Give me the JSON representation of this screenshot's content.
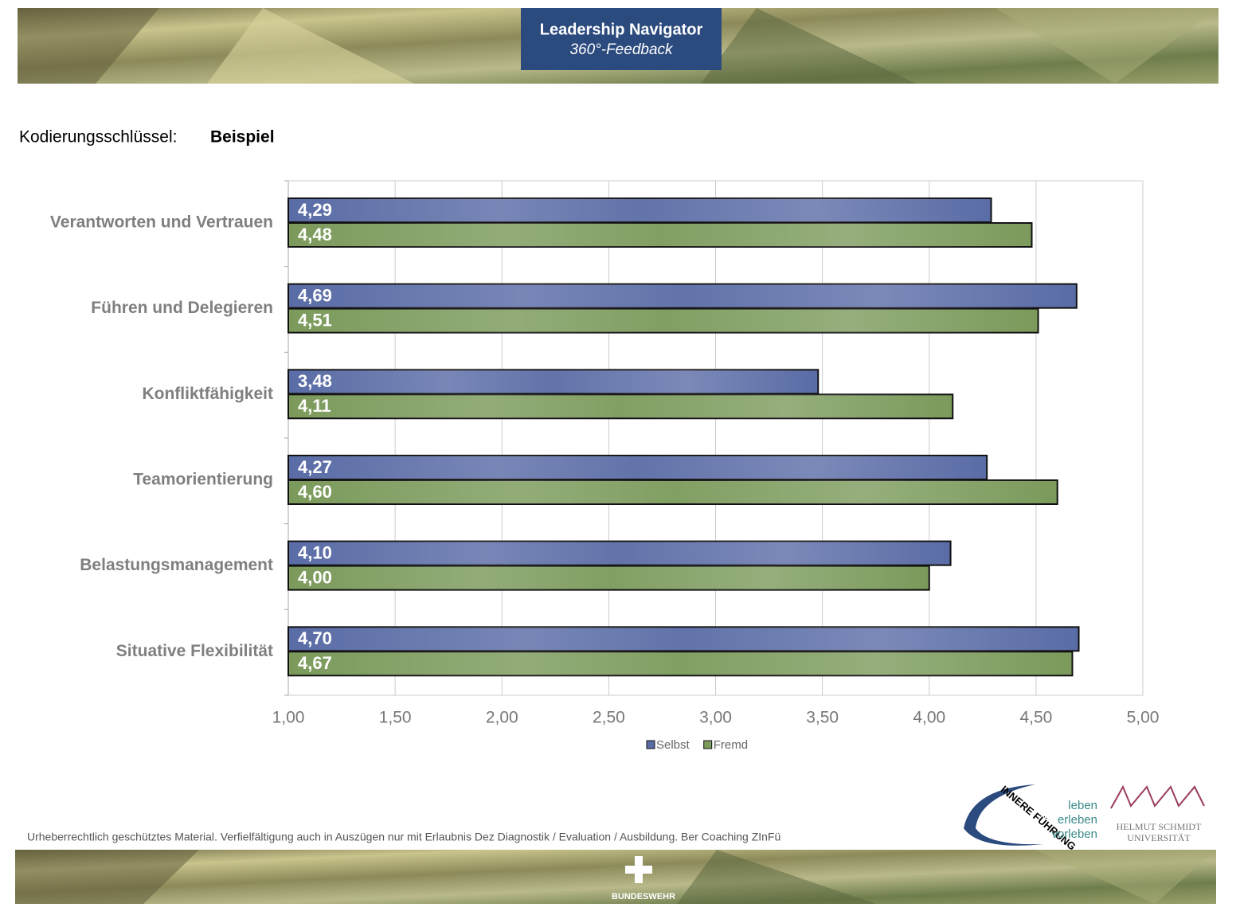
{
  "header": {
    "title": "Leadership Navigator",
    "subtitle": "360°-Feedback"
  },
  "key": {
    "label": "Kodierungsschlüssel:",
    "value": "Beispiel"
  },
  "chart_data": {
    "type": "hbar",
    "categories": [
      "Verantworten und Vertrauen",
      "Führen und Delegieren",
      "Konfliktfähigkeit",
      "Teamorientierung",
      "Belastungsmanagement",
      "Situative Flexibilität"
    ],
    "series": [
      {
        "name": "Selbst",
        "color": "#5a6ca6",
        "values": [
          4.29,
          4.69,
          3.48,
          4.27,
          4.1,
          4.7
        ],
        "value_labels": [
          "4,29",
          "4,69",
          "3,48",
          "4,27",
          "4,10",
          "4,70"
        ]
      },
      {
        "name": "Fremd",
        "color": "#7b9a5b",
        "values": [
          4.48,
          4.51,
          4.11,
          4.6,
          4.0,
          4.67
        ],
        "value_labels": [
          "4,48",
          "4,51",
          "4,11",
          "4,60",
          "4,00",
          "4,67"
        ]
      }
    ],
    "xlim": [
      1,
      5
    ],
    "xticks": [
      {
        "value": 1,
        "label": "1,00"
      },
      {
        "value": 1.5,
        "label": "1,50"
      },
      {
        "value": 2,
        "label": "2,00"
      },
      {
        "value": 2.5,
        "label": "2,50"
      },
      {
        "value": 3,
        "label": "3,00"
      },
      {
        "value": 3.5,
        "label": "3,50"
      },
      {
        "value": 4,
        "label": "4,00"
      },
      {
        "value": 4.5,
        "label": "4,50"
      },
      {
        "value": 5,
        "label": "5,00"
      }
    ],
    "grid": true,
    "legend": "bottom"
  },
  "footer": {
    "copyright": "Urheberrechtlich geschütztes Material. Verfielfältigung auch in Auszügen nur mit Erlaubnis Dez Diagnostik / Evaluation / Ausbildung. Ber Coaching ZInFü",
    "logo_arc": "INNERE FÜHRUNG",
    "logo_lines": [
      "leben",
      "erleben",
      "vorleben"
    ],
    "university": [
      "HELMUT SCHMIDT",
      "UNIVERSITÄT"
    ],
    "brand": "BUNDESWEHR"
  }
}
